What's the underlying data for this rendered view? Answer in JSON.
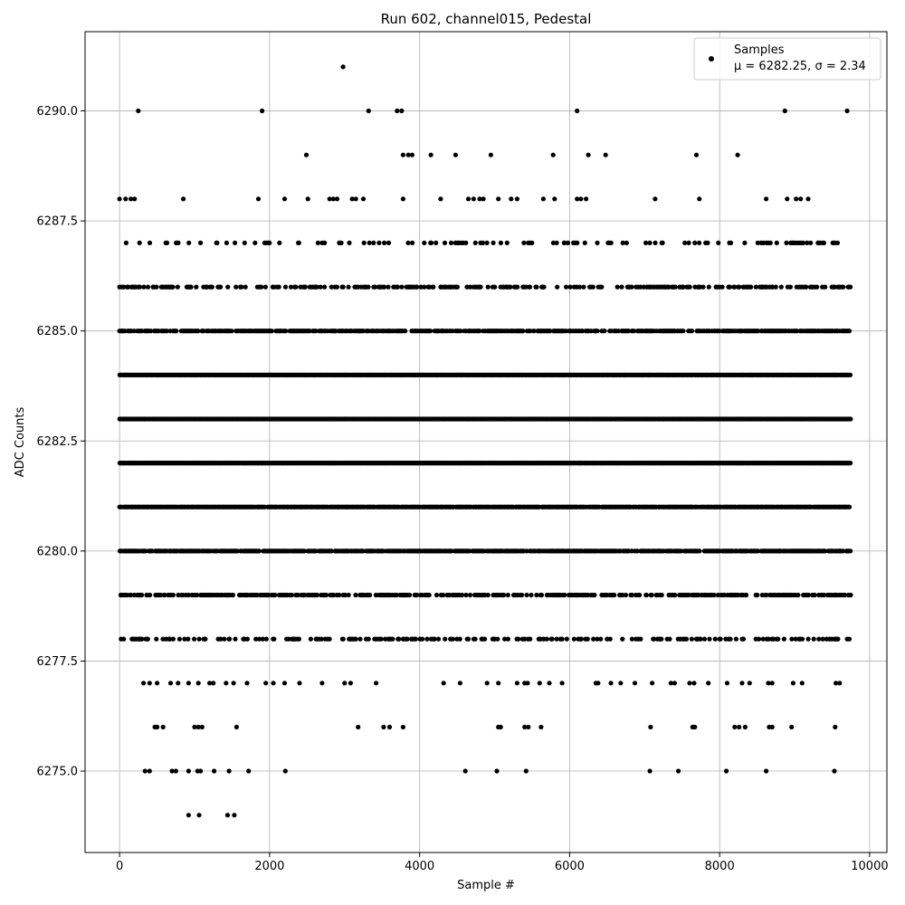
{
  "chart_data": {
    "type": "scatter",
    "title": "Run 602, channel015, Pedestal",
    "xlabel": "Sample #",
    "ylabel": "ADC Counts",
    "xlim": [
      -460,
      10230
    ],
    "ylim": [
      6273.15,
      6291.8
    ],
    "x_ticks": [
      0,
      2000,
      4000,
      6000,
      8000,
      10000
    ],
    "x_tick_labels": [
      "0",
      "2000",
      "4000",
      "6000",
      "8000",
      "10000"
    ],
    "y_ticks": [
      6275.0,
      6277.5,
      6280.0,
      6282.5,
      6285.0,
      6287.5,
      6290.0
    ],
    "y_tick_labels": [
      "6275.0",
      "6277.5",
      "6280.0",
      "6282.5",
      "6285.0",
      "6287.5",
      "6290.0"
    ],
    "grid": true,
    "legend": {
      "placement": "top-right",
      "series_name": "Samples",
      "stats_line": "μ = 6282.25, σ = 2.34"
    },
    "series": [
      {
        "name": "Samples",
        "color": "#000000",
        "n_samples": 9750,
        "sparse_points": [
          [
            2980,
            6291
          ],
          [
            250,
            6290
          ],
          [
            1900,
            6290
          ],
          [
            3320,
            6290
          ],
          [
            3700,
            6290
          ],
          [
            3760,
            6290
          ],
          [
            6100,
            6290
          ],
          [
            8870,
            6290
          ],
          [
            9700,
            6290
          ],
          [
            2490,
            6289
          ],
          [
            3780,
            6289
          ],
          [
            3850,
            6289
          ],
          [
            3900,
            6289
          ],
          [
            4150,
            6289
          ],
          [
            4480,
            6289
          ],
          [
            4950,
            6289
          ],
          [
            5780,
            6289
          ],
          [
            6250,
            6289
          ],
          [
            6480,
            6289
          ],
          [
            7690,
            6289
          ],
          [
            8240,
            6289
          ],
          [
            0,
            6288
          ],
          [
            80,
            6288
          ],
          [
            150,
            6288
          ],
          [
            200,
            6288
          ],
          [
            850,
            6288
          ],
          [
            1850,
            6288
          ],
          [
            2200,
            6288
          ],
          [
            2510,
            6288
          ],
          [
            2800,
            6288
          ],
          [
            2850,
            6288
          ],
          [
            2900,
            6288
          ],
          [
            3100,
            6288
          ],
          [
            3150,
            6288
          ],
          [
            3250,
            6288
          ],
          [
            3780,
            6288
          ],
          [
            4280,
            6288
          ],
          [
            4650,
            6288
          ],
          [
            4720,
            6288
          ],
          [
            4800,
            6288
          ],
          [
            4850,
            6288
          ],
          [
            5050,
            6288
          ],
          [
            5220,
            6288
          ],
          [
            5300,
            6288
          ],
          [
            5650,
            6288
          ],
          [
            5800,
            6288
          ],
          [
            6100,
            6288
          ],
          [
            6150,
            6288
          ],
          [
            6220,
            6288
          ],
          [
            7140,
            6288
          ],
          [
            7730,
            6288
          ],
          [
            8620,
            6288
          ],
          [
            8900,
            6288
          ],
          [
            9020,
            6288
          ],
          [
            9080,
            6288
          ],
          [
            9180,
            6288
          ],
          [
            20,
            6278
          ],
          [
            3060,
            6278
          ],
          [
            3150,
            6278
          ],
          [
            3400,
            6278
          ],
          [
            3600,
            6278
          ],
          [
            3900,
            6278
          ],
          [
            4100,
            6278
          ],
          [
            4650,
            6278
          ],
          [
            5000,
            6278
          ],
          [
            5400,
            6278
          ],
          [
            5900,
            6278
          ],
          [
            6240,
            6278
          ],
          [
            9700,
            6278
          ],
          [
            8000,
            6278
          ],
          [
            7700,
            6278
          ],
          [
            7300,
            6278
          ],
          [
            320,
            6277
          ],
          [
            400,
            6277
          ],
          [
            500,
            6277
          ],
          [
            680,
            6277
          ],
          [
            780,
            6277
          ],
          [
            920,
            6277
          ],
          [
            1050,
            6277
          ],
          [
            1200,
            6277
          ],
          [
            1250,
            6277
          ],
          [
            1420,
            6277
          ],
          [
            1520,
            6277
          ],
          [
            1700,
            6277
          ],
          [
            1950,
            6277
          ],
          [
            2050,
            6277
          ],
          [
            2200,
            6277
          ],
          [
            2400,
            6277
          ],
          [
            2700,
            6277
          ],
          [
            3000,
            6277
          ],
          [
            3080,
            6277
          ],
          [
            3420,
            6277
          ],
          [
            4320,
            6277
          ],
          [
            4540,
            6277
          ],
          [
            4900,
            6277
          ],
          [
            5050,
            6277
          ],
          [
            5300,
            6277
          ],
          [
            5400,
            6277
          ],
          [
            5440,
            6277
          ],
          [
            5600,
            6277
          ],
          [
            5730,
            6277
          ],
          [
            5900,
            6277
          ],
          [
            6350,
            6277
          ],
          [
            6380,
            6277
          ],
          [
            6550,
            6277
          ],
          [
            6680,
            6277
          ],
          [
            6870,
            6277
          ],
          [
            7100,
            6277
          ],
          [
            7350,
            6277
          ],
          [
            7400,
            6277
          ],
          [
            7600,
            6277
          ],
          [
            7660,
            6277
          ],
          [
            7850,
            6277
          ],
          [
            8100,
            6277
          ],
          [
            8300,
            6277
          ],
          [
            8400,
            6277
          ],
          [
            8650,
            6277
          ],
          [
            8700,
            6277
          ],
          [
            8980,
            6277
          ],
          [
            9100,
            6277
          ],
          [
            9550,
            6277
          ],
          [
            9600,
            6277
          ],
          [
            470,
            6276
          ],
          [
            500,
            6276
          ],
          [
            580,
            6276
          ],
          [
            1000,
            6276
          ],
          [
            1050,
            6276
          ],
          [
            1100,
            6276
          ],
          [
            1560,
            6276
          ],
          [
            3180,
            6276
          ],
          [
            3520,
            6276
          ],
          [
            3600,
            6276
          ],
          [
            3780,
            6276
          ],
          [
            5050,
            6276
          ],
          [
            5080,
            6276
          ],
          [
            5400,
            6276
          ],
          [
            5450,
            6276
          ],
          [
            5620,
            6276
          ],
          [
            7080,
            6276
          ],
          [
            7640,
            6276
          ],
          [
            7670,
            6276
          ],
          [
            8200,
            6276
          ],
          [
            8260,
            6276
          ],
          [
            8340,
            6276
          ],
          [
            8660,
            6276
          ],
          [
            8700,
            6276
          ],
          [
            8960,
            6276
          ],
          [
            9540,
            6276
          ],
          [
            340,
            6275
          ],
          [
            400,
            6275
          ],
          [
            700,
            6275
          ],
          [
            750,
            6275
          ],
          [
            920,
            6275
          ],
          [
            1040,
            6275
          ],
          [
            1080,
            6275
          ],
          [
            1260,
            6275
          ],
          [
            1460,
            6275
          ],
          [
            1720,
            6275
          ],
          [
            2210,
            6275
          ],
          [
            4610,
            6275
          ],
          [
            5030,
            6275
          ],
          [
            5420,
            6275
          ],
          [
            7070,
            6275
          ],
          [
            7450,
            6275
          ],
          [
            8090,
            6275
          ],
          [
            8620,
            6275
          ],
          [
            9530,
            6275
          ],
          [
            920,
            6274
          ],
          [
            1060,
            6274
          ],
          [
            1440,
            6274
          ],
          [
            1530,
            6274
          ]
        ],
        "dense_levels": [
          {
            "y": 6287,
            "density": 0.18
          },
          {
            "y": 6286,
            "density": 0.35
          },
          {
            "y": 6285,
            "density": 0.75
          },
          {
            "y": 6284,
            "density": 1.0
          },
          {
            "y": 6283,
            "density": 1.0
          },
          {
            "y": 6282,
            "density": 1.0
          },
          {
            "y": 6281,
            "density": 0.95
          },
          {
            "y": 6280,
            "density": 0.8
          },
          {
            "y": 6279,
            "density": 0.5
          },
          {
            "y": 6278,
            "density": 0.25
          }
        ]
      }
    ]
  }
}
